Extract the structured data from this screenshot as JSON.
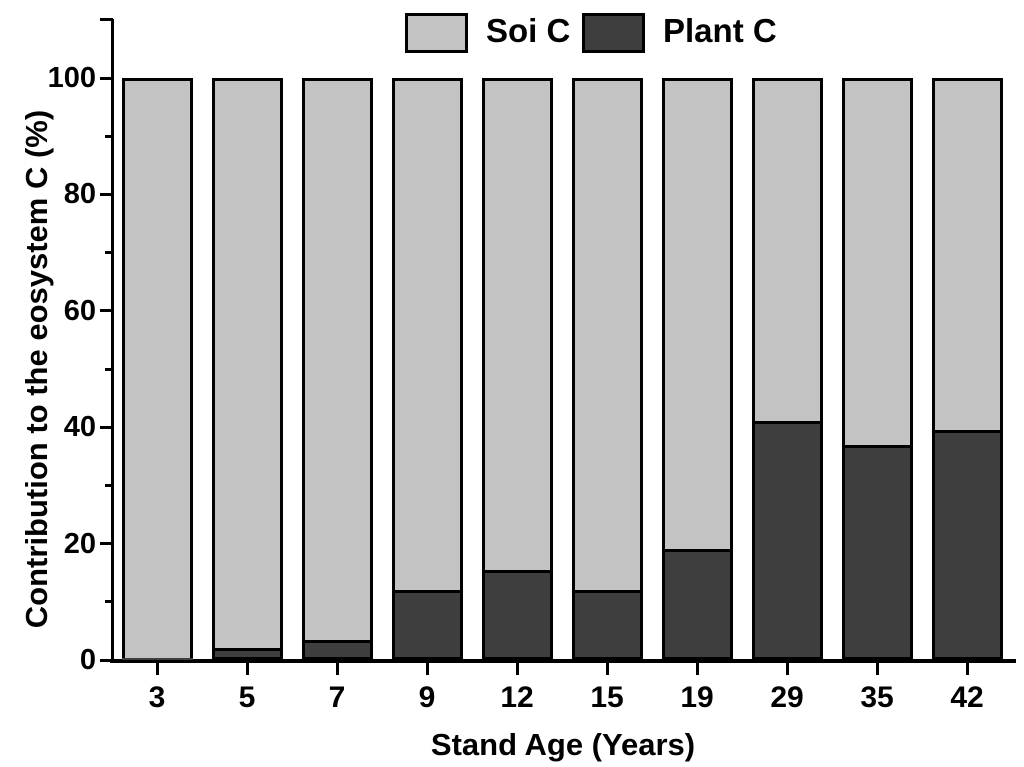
{
  "colors": {
    "background": "#ffffff",
    "axis": "#000000",
    "soil_fill": "#c3c3c3",
    "plant_fill": "#3e3e3e"
  },
  "legend": {
    "position": "top-center",
    "entries": [
      {
        "label": "Soi C",
        "color": "#c3c3c3"
      },
      {
        "label": "Plant C",
        "color": "#3e3e3e"
      }
    ]
  },
  "chart_data": {
    "type": "bar",
    "stacked": true,
    "title": "",
    "xlabel": "Stand Age (Years)",
    "ylabel": "Contribution to the eosystem C (%)",
    "categories": [
      "3",
      "5",
      "7",
      "9",
      "12",
      "15",
      "19",
      "29",
      "35",
      "42"
    ],
    "series": [
      {
        "name": "Soi C",
        "color": "#c3c3c3",
        "values": [
          99.7,
          98.0,
          96.5,
          88.0,
          84.5,
          88.0,
          81.0,
          59.0,
          63.0,
          60.5
        ]
      },
      {
        "name": "Plant C",
        "color": "#3e3e3e",
        "values": [
          0.3,
          2.0,
          3.5,
          12.0,
          15.5,
          12.0,
          19.0,
          41.0,
          37.0,
          39.5
        ]
      }
    ],
    "ylim": [
      0,
      110
    ],
    "bar_total": 100,
    "yticks_major": [
      0,
      20,
      40,
      60,
      80,
      100
    ],
    "yticks_minor": [
      10,
      30,
      50,
      70,
      90
    ],
    "y_axis_cap": 110,
    "grid": false,
    "legend_position": "top-center"
  }
}
